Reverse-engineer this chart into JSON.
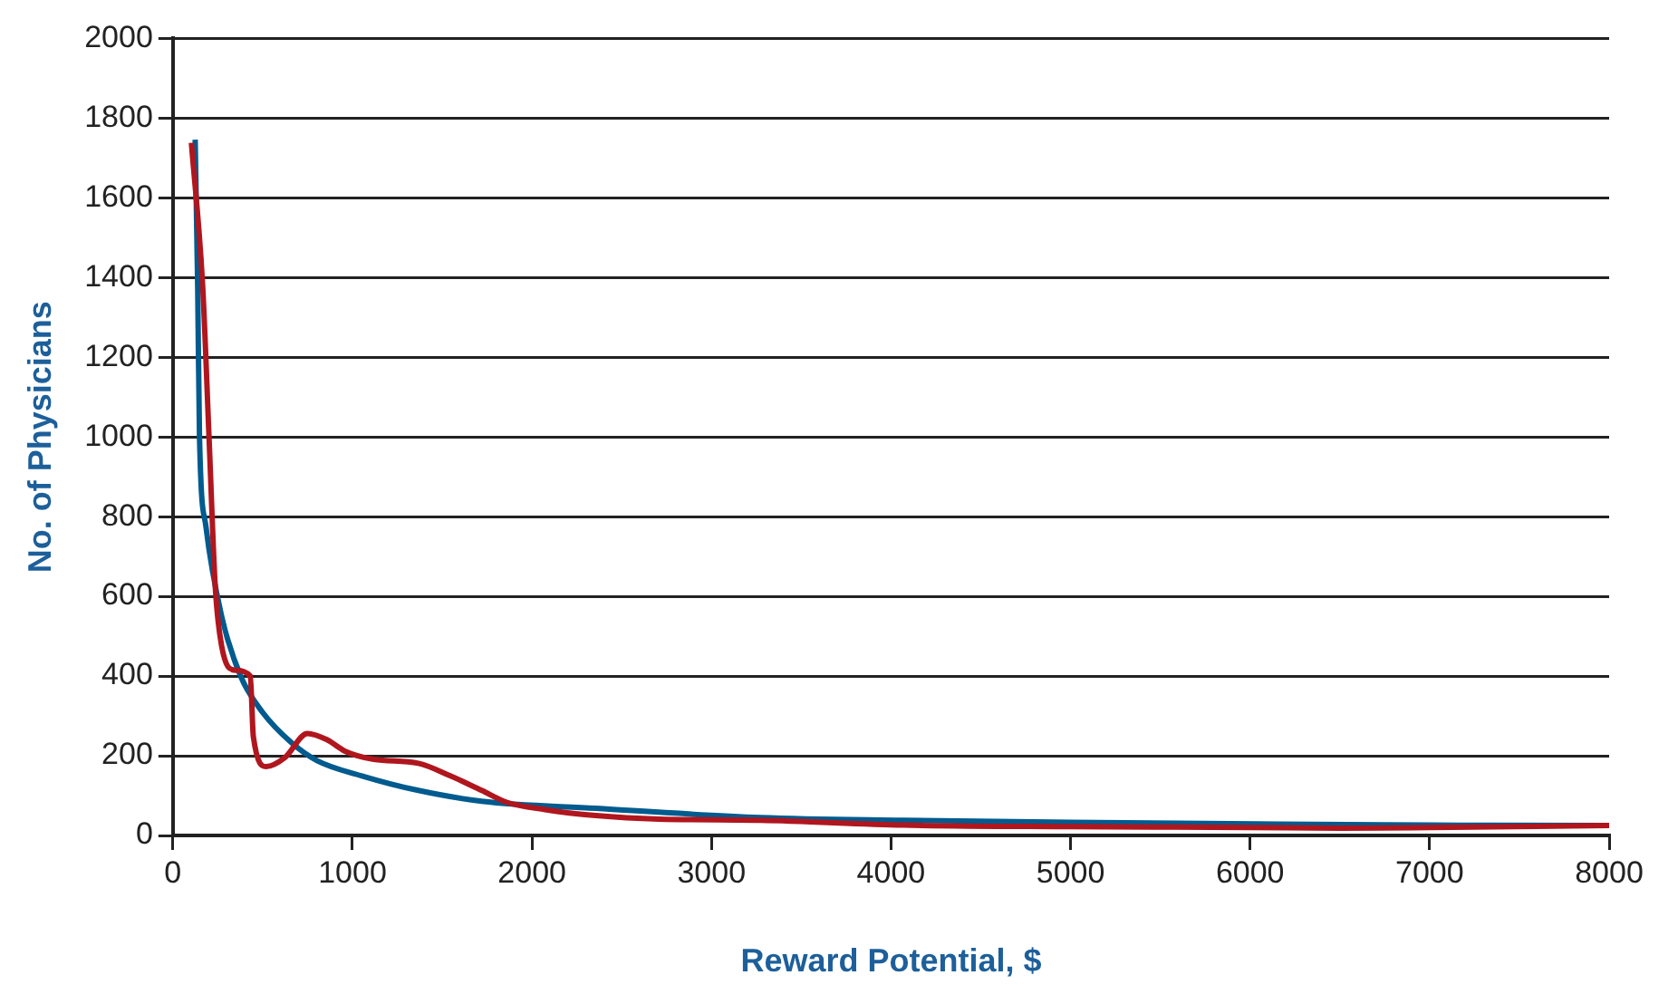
{
  "chart_data": {
    "type": "line",
    "xlabel": "Reward Potential, $",
    "ylabel": "No. of Physicians",
    "xlim": [
      0,
      8000
    ],
    "xticks": [
      0,
      1000,
      2000,
      3000,
      4000,
      5000,
      6000,
      7000,
      8000
    ],
    "ylim": [
      0,
      2000
    ],
    "yticks": [
      0,
      200,
      400,
      600,
      800,
      1000,
      1200,
      1400,
      1600,
      1800,
      2000
    ],
    "grid": "y",
    "legend": false,
    "marker": "none",
    "line_style": "solid",
    "series": [
      {
        "color": "#b0161e",
        "x": [
          103,
          166,
          201,
          236,
          272,
          342,
          431,
          448,
          519,
          625,
          749,
          855,
          961,
          1119,
          1367,
          1543,
          1720,
          1861,
          2073,
          2355,
          2708,
          3273,
          4068,
          5000,
          6000,
          6500,
          7000,
          8000
        ],
        "values": [
          1738,
          1377,
          1002,
          623,
          474,
          415,
          400,
          248,
          173,
          196,
          256,
          241,
          211,
          191,
          181,
          150,
          113,
          83,
          65,
          50,
          41,
          38,
          26,
          22,
          20,
          18,
          20,
          25
        ]
      },
      {
        "color": "#005b8f",
        "x": [
          124,
          138,
          148,
          184,
          272,
          378,
          501,
          660,
          802,
          1049,
          1367,
          1720,
          2355,
          3273,
          4068,
          5000,
          6028,
          7000,
          8000
        ],
        "values": [
          1746,
          1377,
          1002,
          775,
          549,
          399,
          308,
          233,
          188,
          150,
          113,
          86,
          68,
          45,
          38,
          33,
          29,
          26,
          25
        ]
      }
    ]
  }
}
